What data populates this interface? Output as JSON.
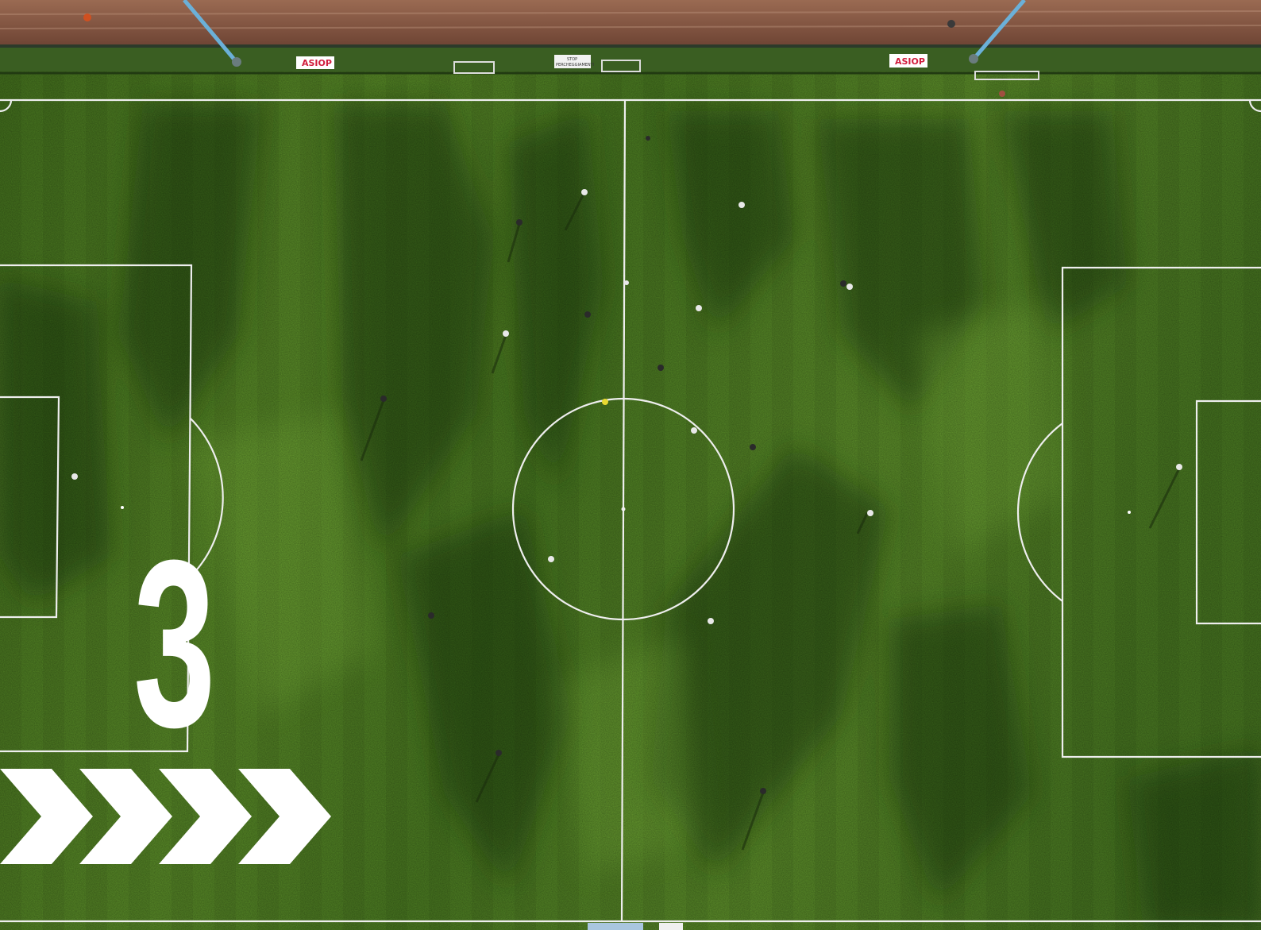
{
  "overlay": {
    "number": "3",
    "chevron_count": 4,
    "color": "#ffffff"
  },
  "banners": {
    "left": "ASIOP",
    "right": "ASIOP",
    "center_top": "STOP",
    "center_bottom": "PERCHEGGIAMENTI"
  },
  "colors": {
    "grass_dark": "#3b661b",
    "grass_light": "#6a9e30",
    "track": "#8a5a44",
    "lines": "#f2f2f2"
  }
}
